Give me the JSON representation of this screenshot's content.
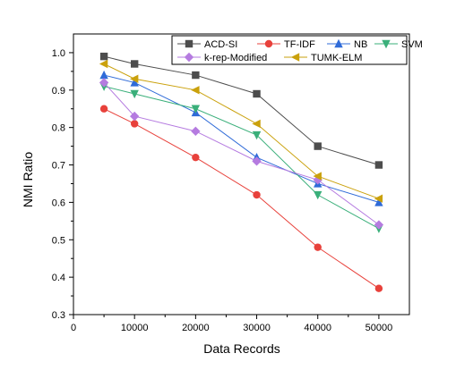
{
  "chart_data": {
    "type": "line",
    "title": "",
    "xlabel": "Data Records",
    "ylabel": "NMI Ratio",
    "xlim": [
      0,
      55000
    ],
    "ylim": [
      0.3,
      1.05
    ],
    "x_ticks": [
      0,
      10000,
      20000,
      30000,
      40000,
      50000
    ],
    "y_ticks": [
      0.3,
      0.4,
      0.5,
      0.6,
      0.7,
      0.8,
      0.9,
      1.0
    ],
    "x_tick_labels": [
      "0",
      "10000",
      "20000",
      "30000",
      "40000",
      "50000"
    ],
    "y_tick_labels": [
      "0.3",
      "0.4",
      "0.5",
      "0.6",
      "0.7",
      "0.8",
      "0.9",
      "1.0"
    ],
    "x": [
      5000,
      10000,
      20000,
      30000,
      40000,
      50000
    ],
    "grid": false,
    "legend_position": "top-right",
    "series": [
      {
        "name": "ACD-SI",
        "color": "#4d4d4d",
        "marker": "square",
        "values": [
          0.99,
          0.97,
          0.94,
          0.89,
          0.75,
          0.7
        ]
      },
      {
        "name": "TF-IDF",
        "color": "#e8413b",
        "marker": "circle",
        "values": [
          0.85,
          0.81,
          0.72,
          0.62,
          0.48,
          0.37
        ]
      },
      {
        "name": "NB",
        "color": "#2f6bd8",
        "marker": "triangle-up",
        "values": [
          0.94,
          0.92,
          0.84,
          0.72,
          0.65,
          0.6
        ]
      },
      {
        "name": "SVM",
        "color": "#3aaf7a",
        "marker": "triangle-down",
        "values": [
          0.91,
          0.89,
          0.85,
          0.78,
          0.62,
          0.53
        ]
      },
      {
        "name": "k-rep-Modified",
        "color": "#b57be0",
        "marker": "diamond",
        "values": [
          0.92,
          0.83,
          0.79,
          0.71,
          0.66,
          0.54
        ]
      },
      {
        "name": "TUMK-ELM",
        "color": "#caa10c",
        "marker": "triangle-left",
        "values": [
          0.97,
          0.93,
          0.9,
          0.81,
          0.67,
          0.61
        ]
      }
    ]
  }
}
